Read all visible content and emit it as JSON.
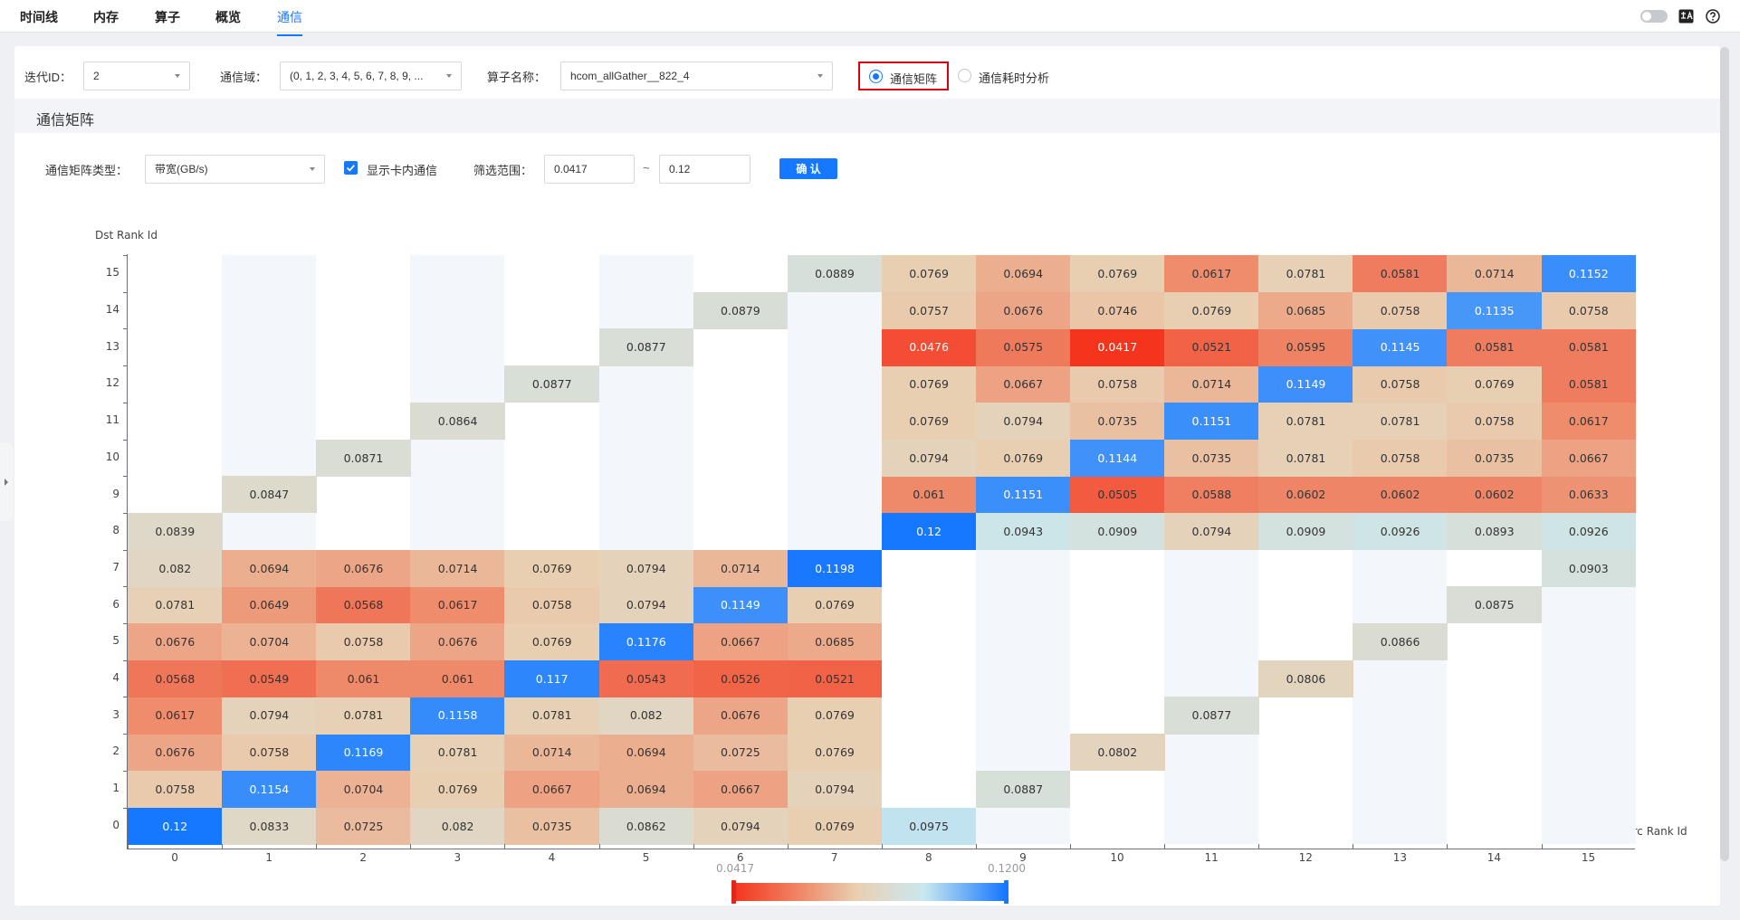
{
  "nav": {
    "tabs": [
      "时间线",
      "内存",
      "算子",
      "概览",
      "通信"
    ],
    "active_tab": 4
  },
  "filters": {
    "iteration_label": "迭代ID：",
    "iteration_value": "2",
    "domain_label": "通信域：",
    "domain_value": "(0, 1, 2, 3, 4, 5, 6, 7, 8, 9, ...",
    "operator_label": "算子名称：",
    "operator_value": "hcom_allGather__822_4",
    "radio_matrix_label": "通信矩阵",
    "radio_time_label": "通信耗时分析",
    "selected_radio": "通信矩阵"
  },
  "section": {
    "title": "通信矩阵"
  },
  "matrix_controls": {
    "type_label": "通信矩阵类型：",
    "type_value": "带宽(GB/s)",
    "checkbox_label": "显示卡内通信",
    "checkbox_checked": true,
    "range_label": "筛选范围：",
    "range_min": "0.0417",
    "range_sep": "~",
    "range_max": "0.12",
    "confirm_label": "确 认"
  },
  "colors": {
    "accent": "#1677ff",
    "scale_low": "#f5341e",
    "scale_mid": "#e9cfb2",
    "scale_mid2": "#c8e8ee",
    "scale_high": "#1677ff"
  },
  "chart_data": {
    "type": "heatmap",
    "xlabel": "Src Rank Id",
    "ylabel": "Dst Rank Id",
    "x_categories": [
      "0",
      "1",
      "2",
      "3",
      "4",
      "5",
      "6",
      "7",
      "8",
      "9",
      "10",
      "11",
      "12",
      "13",
      "14",
      "15"
    ],
    "y_categories": [
      "0",
      "1",
      "2",
      "3",
      "4",
      "5",
      "6",
      "7",
      "8",
      "9",
      "10",
      "11",
      "12",
      "13",
      "14",
      "15"
    ],
    "visual_map": {
      "min": 0.0417,
      "max": 0.12,
      "min_label": "0.0417",
      "max_label": "0.1200"
    },
    "cells": [
      [
        0,
        0,
        "0.12"
      ],
      [
        1,
        0,
        "0.0833"
      ],
      [
        2,
        0,
        "0.0725"
      ],
      [
        3,
        0,
        "0.082"
      ],
      [
        4,
        0,
        "0.0735"
      ],
      [
        5,
        0,
        "0.0862"
      ],
      [
        6,
        0,
        "0.0794"
      ],
      [
        7,
        0,
        "0.0769"
      ],
      [
        8,
        0,
        "0.0975"
      ],
      [
        0,
        1,
        "0.0758"
      ],
      [
        1,
        1,
        "0.1154"
      ],
      [
        2,
        1,
        "0.0704"
      ],
      [
        3,
        1,
        "0.0769"
      ],
      [
        4,
        1,
        "0.0667"
      ],
      [
        5,
        1,
        "0.0694"
      ],
      [
        6,
        1,
        "0.0667"
      ],
      [
        7,
        1,
        "0.0794"
      ],
      [
        9,
        1,
        "0.0887"
      ],
      [
        0,
        2,
        "0.0676"
      ],
      [
        1,
        2,
        "0.0758"
      ],
      [
        2,
        2,
        "0.1169"
      ],
      [
        3,
        2,
        "0.0781"
      ],
      [
        4,
        2,
        "0.0714"
      ],
      [
        5,
        2,
        "0.0694"
      ],
      [
        6,
        2,
        "0.0725"
      ],
      [
        7,
        2,
        "0.0769"
      ],
      [
        10,
        2,
        "0.0802"
      ],
      [
        0,
        3,
        "0.0617"
      ],
      [
        1,
        3,
        "0.0794"
      ],
      [
        2,
        3,
        "0.0781"
      ],
      [
        3,
        3,
        "0.1158"
      ],
      [
        4,
        3,
        "0.0781"
      ],
      [
        5,
        3,
        "0.082"
      ],
      [
        6,
        3,
        "0.0676"
      ],
      [
        7,
        3,
        "0.0769"
      ],
      [
        11,
        3,
        "0.0877"
      ],
      [
        0,
        4,
        "0.0568"
      ],
      [
        1,
        4,
        "0.0549"
      ],
      [
        2,
        4,
        "0.061"
      ],
      [
        3,
        4,
        "0.061"
      ],
      [
        4,
        4,
        "0.117"
      ],
      [
        5,
        4,
        "0.0543"
      ],
      [
        6,
        4,
        "0.0526"
      ],
      [
        7,
        4,
        "0.0521"
      ],
      [
        12,
        4,
        "0.0806"
      ],
      [
        0,
        5,
        "0.0676"
      ],
      [
        1,
        5,
        "0.0704"
      ],
      [
        2,
        5,
        "0.0758"
      ],
      [
        3,
        5,
        "0.0676"
      ],
      [
        4,
        5,
        "0.0769"
      ],
      [
        5,
        5,
        "0.1176"
      ],
      [
        6,
        5,
        "0.0667"
      ],
      [
        7,
        5,
        "0.0685"
      ],
      [
        13,
        5,
        "0.0866"
      ],
      [
        0,
        6,
        "0.0781"
      ],
      [
        1,
        6,
        "0.0649"
      ],
      [
        2,
        6,
        "0.0568"
      ],
      [
        3,
        6,
        "0.0617"
      ],
      [
        4,
        6,
        "0.0758"
      ],
      [
        5,
        6,
        "0.0794"
      ],
      [
        6,
        6,
        "0.1149"
      ],
      [
        7,
        6,
        "0.0769"
      ],
      [
        14,
        6,
        "0.0875"
      ],
      [
        0,
        7,
        "0.082"
      ],
      [
        1,
        7,
        "0.0694"
      ],
      [
        2,
        7,
        "0.0676"
      ],
      [
        3,
        7,
        "0.0714"
      ],
      [
        4,
        7,
        "0.0769"
      ],
      [
        5,
        7,
        "0.0794"
      ],
      [
        6,
        7,
        "0.0714"
      ],
      [
        7,
        7,
        "0.1198"
      ],
      [
        15,
        7,
        "0.0903"
      ],
      [
        0,
        8,
        "0.0839"
      ],
      [
        8,
        8,
        "0.12"
      ],
      [
        9,
        8,
        "0.0943"
      ],
      [
        10,
        8,
        "0.0909"
      ],
      [
        11,
        8,
        "0.0794"
      ],
      [
        12,
        8,
        "0.0909"
      ],
      [
        13,
        8,
        "0.0926"
      ],
      [
        14,
        8,
        "0.0893"
      ],
      [
        15,
        8,
        "0.0926"
      ],
      [
        1,
        9,
        "0.0847"
      ],
      [
        8,
        9,
        "0.061"
      ],
      [
        9,
        9,
        "0.1151"
      ],
      [
        10,
        9,
        "0.0505"
      ],
      [
        11,
        9,
        "0.0588"
      ],
      [
        12,
        9,
        "0.0602"
      ],
      [
        13,
        9,
        "0.0602"
      ],
      [
        14,
        9,
        "0.0602"
      ],
      [
        15,
        9,
        "0.0633"
      ],
      [
        2,
        10,
        "0.0871"
      ],
      [
        8,
        10,
        "0.0794"
      ],
      [
        9,
        10,
        "0.0769"
      ],
      [
        10,
        10,
        "0.1144"
      ],
      [
        11,
        10,
        "0.0735"
      ],
      [
        12,
        10,
        "0.0781"
      ],
      [
        13,
        10,
        "0.0758"
      ],
      [
        14,
        10,
        "0.0735"
      ],
      [
        15,
        10,
        "0.0667"
      ],
      [
        3,
        11,
        "0.0864"
      ],
      [
        8,
        11,
        "0.0769"
      ],
      [
        9,
        11,
        "0.0794"
      ],
      [
        10,
        11,
        "0.0735"
      ],
      [
        11,
        11,
        "0.1151"
      ],
      [
        12,
        11,
        "0.0781"
      ],
      [
        13,
        11,
        "0.0781"
      ],
      [
        14,
        11,
        "0.0758"
      ],
      [
        15,
        11,
        "0.0617"
      ],
      [
        4,
        12,
        "0.0877"
      ],
      [
        8,
        12,
        "0.0769"
      ],
      [
        9,
        12,
        "0.0667"
      ],
      [
        10,
        12,
        "0.0758"
      ],
      [
        11,
        12,
        "0.0714"
      ],
      [
        12,
        12,
        "0.1149"
      ],
      [
        13,
        12,
        "0.0758"
      ],
      [
        14,
        12,
        "0.0769"
      ],
      [
        15,
        12,
        "0.0581"
      ],
      [
        5,
        13,
        "0.0877"
      ],
      [
        8,
        13,
        "0.0476"
      ],
      [
        9,
        13,
        "0.0575"
      ],
      [
        10,
        13,
        "0.0417"
      ],
      [
        11,
        13,
        "0.0521"
      ],
      [
        12,
        13,
        "0.0595"
      ],
      [
        13,
        13,
        "0.1145"
      ],
      [
        14,
        13,
        "0.0581"
      ],
      [
        15,
        13,
        "0.0581"
      ],
      [
        6,
        14,
        "0.0879"
      ],
      [
        8,
        14,
        "0.0757"
      ],
      [
        9,
        14,
        "0.0676"
      ],
      [
        10,
        14,
        "0.0746"
      ],
      [
        11,
        14,
        "0.0769"
      ],
      [
        12,
        14,
        "0.0685"
      ],
      [
        13,
        14,
        "0.0758"
      ],
      [
        14,
        14,
        "0.1135"
      ],
      [
        15,
        14,
        "0.0758"
      ],
      [
        7,
        15,
        "0.0889"
      ],
      [
        8,
        15,
        "0.0769"
      ],
      [
        9,
        15,
        "0.0694"
      ],
      [
        10,
        15,
        "0.0769"
      ],
      [
        11,
        15,
        "0.0617"
      ],
      [
        12,
        15,
        "0.0781"
      ],
      [
        13,
        15,
        "0.0581"
      ],
      [
        14,
        15,
        "0.0714"
      ],
      [
        15,
        15,
        "0.1152"
      ]
    ]
  }
}
